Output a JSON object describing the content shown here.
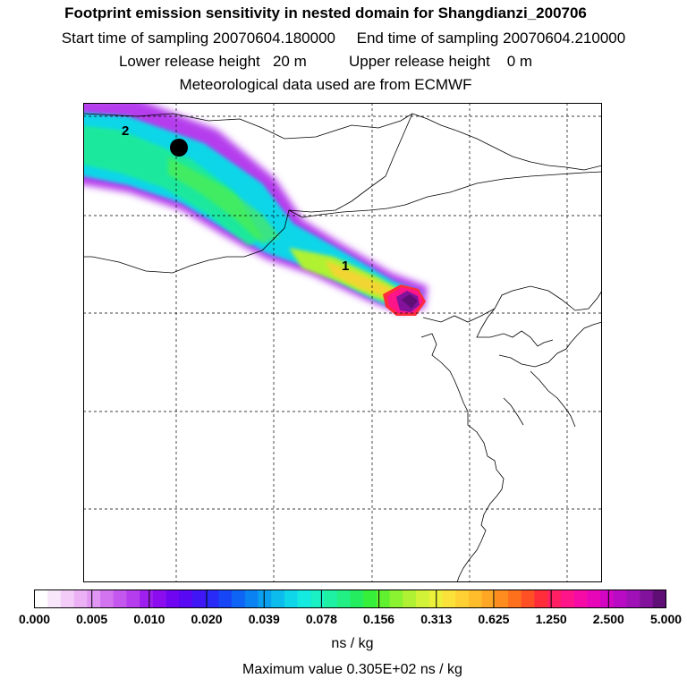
{
  "title": "Footprint emission sensitivity in nested domain for Shangdianzi_200706",
  "sampling": {
    "start": "Start time of sampling 20070604.180000",
    "end": "End time of sampling 20070604.210000"
  },
  "release": {
    "lower": "Lower release height   20 m",
    "upper": "Upper release height    0 m"
  },
  "met_note": "Meteorological data used are from ECMWF",
  "map": {
    "markers": [
      {
        "label": "1"
      },
      {
        "label": "2"
      }
    ]
  },
  "colorbar": {
    "ticks": [
      "0.000",
      "0.005",
      "0.010",
      "0.020",
      "0.039",
      "0.078",
      "0.156",
      "0.313",
      "0.625",
      "1.250",
      "2.500",
      "5.000"
    ],
    "colors": [
      "#ffffff",
      "#f8e6fb",
      "#f3cdf8",
      "#ecb1f5",
      "#e096f2",
      "#d273ef",
      "#c457ee",
      "#b53ded",
      "#9f1fee",
      "#8a0cef",
      "#7005f1",
      "#5808f3",
      "#4015f6",
      "#2a2af8",
      "#1746f7",
      "#0e64f5",
      "#0a82f2",
      "#0aa0ef",
      "#0cbcec",
      "#10d6e9",
      "#14eadf",
      "#1af0c4",
      "#1ef0a4",
      "#22ef84",
      "#24ee60",
      "#36ef3a",
      "#60f030",
      "#8af230",
      "#b0f233",
      "#d2f237",
      "#ecf03a",
      "#fae23a",
      "#fed033",
      "#ffbd2c",
      "#ffa624",
      "#ff8c1f",
      "#ff701d",
      "#ff4f25",
      "#ff2c3a",
      "#ff1f62",
      "#ff1589",
      "#f70ba6",
      "#e807b8",
      "#d306c3",
      "#ba0bc4",
      "#9f10b6",
      "#82129c",
      "#5e0e74"
    ],
    "unit": "ns / kg",
    "max_value": "Maximum value  0.305E+02 ns / kg"
  }
}
